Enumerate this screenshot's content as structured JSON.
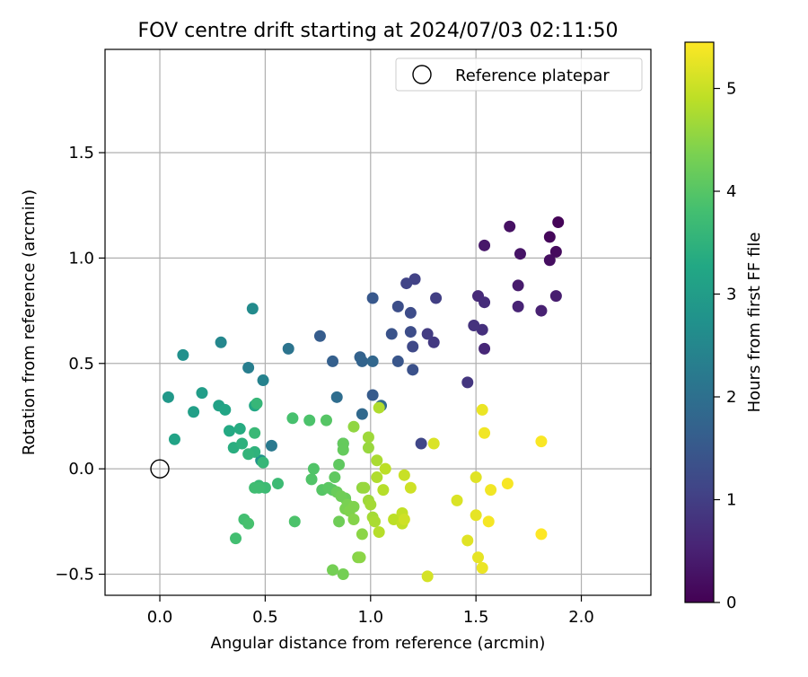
{
  "chart_data": {
    "type": "scatter",
    "title": "FOV centre drift starting at 2024/07/03 02:11:50",
    "xlabel": "Angular distance from reference (arcmin)",
    "ylabel": "Rotation from reference (arcmin)",
    "xlim": [
      -0.26,
      2.33
    ],
    "ylim": [
      -0.6,
      1.99
    ],
    "xticks": [
      0.0,
      0.5,
      1.0,
      1.5,
      2.0
    ],
    "xtick_labels": [
      "0.0",
      "0.5",
      "1.0",
      "1.5",
      "2.0"
    ],
    "yticks": [
      -0.5,
      0.0,
      0.5,
      1.0,
      1.5
    ],
    "ytick_labels": [
      "−0.5",
      "0.0",
      "0.5",
      "1.0",
      "1.5"
    ],
    "grid": true,
    "legend": {
      "placement": "upper right",
      "entries": [
        "Reference platepar"
      ]
    },
    "reference_point": {
      "x": 0.0,
      "y": 0.0,
      "label": "Reference platepar"
    },
    "colorbar": {
      "label": "Hours from first FF file",
      "range": [
        0,
        5.45
      ],
      "ticks": [
        0,
        1,
        2,
        3,
        4,
        5
      ],
      "tick_labels": [
        "0",
        "1",
        "2",
        "3",
        "4",
        "5"
      ],
      "colormap": "viridis"
    },
    "series": [
      {
        "columns": [
          "x",
          "y",
          "hours"
        ],
        "points": [
          [
            1.89,
            1.17,
            0.05
          ],
          [
            1.85,
            1.1,
            0.1
          ],
          [
            1.88,
            1.03,
            0.15
          ],
          [
            1.85,
            0.99,
            0.2
          ],
          [
            1.66,
            1.15,
            0.25
          ],
          [
            1.71,
            1.02,
            0.3
          ],
          [
            1.54,
            1.06,
            0.35
          ],
          [
            1.7,
            0.87,
            0.4
          ],
          [
            1.88,
            0.82,
            0.45
          ],
          [
            1.81,
            0.75,
            0.5
          ],
          [
            1.7,
            0.77,
            0.55
          ],
          [
            1.54,
            0.57,
            0.6
          ],
          [
            1.51,
            0.82,
            0.65
          ],
          [
            1.54,
            0.79,
            0.7
          ],
          [
            1.53,
            0.66,
            0.75
          ],
          [
            1.49,
            0.68,
            0.8
          ],
          [
            1.46,
            0.41,
            0.85
          ],
          [
            1.3,
            0.6,
            0.9
          ],
          [
            1.27,
            0.64,
            0.95
          ],
          [
            1.31,
            0.81,
            1.0
          ],
          [
            1.21,
            0.9,
            1.05
          ],
          [
            1.17,
            0.88,
            1.1
          ],
          [
            1.24,
            0.12,
            1.15
          ],
          [
            1.2,
            0.58,
            1.2
          ],
          [
            1.19,
            0.74,
            1.25
          ],
          [
            1.19,
            0.65,
            1.28
          ],
          [
            1.13,
            0.77,
            1.3
          ],
          [
            1.2,
            0.47,
            1.35
          ],
          [
            1.1,
            0.64,
            1.4
          ],
          [
            1.13,
            0.51,
            1.45
          ],
          [
            1.01,
            0.81,
            1.5
          ],
          [
            1.01,
            0.35,
            1.55
          ],
          [
            0.76,
            0.63,
            1.6
          ],
          [
            0.82,
            0.51,
            1.65
          ],
          [
            0.95,
            0.53,
            1.7
          ],
          [
            0.96,
            0.51,
            1.75
          ],
          [
            1.01,
            0.51,
            1.8
          ],
          [
            0.96,
            0.26,
            1.85
          ],
          [
            1.05,
            0.3,
            1.9
          ],
          [
            0.84,
            0.34,
            1.95
          ],
          [
            0.87,
            0.12,
            2.0
          ],
          [
            0.61,
            0.57,
            2.1
          ],
          [
            0.53,
            0.11,
            2.2
          ],
          [
            0.42,
            0.48,
            2.3
          ],
          [
            0.49,
            0.42,
            2.4
          ],
          [
            0.29,
            0.6,
            2.5
          ],
          [
            0.44,
            0.76,
            2.6
          ],
          [
            0.11,
            0.54,
            2.7
          ],
          [
            0.48,
            0.04,
            2.8
          ],
          [
            0.04,
            0.34,
            2.9
          ],
          [
            0.2,
            0.36,
            3.0
          ],
          [
            0.16,
            0.27,
            3.05
          ],
          [
            0.28,
            0.3,
            3.1
          ],
          [
            0.07,
            0.14,
            3.15
          ],
          [
            0.31,
            0.28,
            3.2
          ],
          [
            0.45,
            0.3,
            3.25
          ],
          [
            0.33,
            0.18,
            3.3
          ],
          [
            0.38,
            0.19,
            3.35
          ],
          [
            0.35,
            0.1,
            3.4
          ],
          [
            0.39,
            0.12,
            3.45
          ],
          [
            0.45,
            0.08,
            3.5
          ],
          [
            0.42,
            0.07,
            3.55
          ],
          [
            0.46,
            0.31,
            3.6
          ],
          [
            0.49,
            0.03,
            3.6
          ],
          [
            0.45,
            0.17,
            3.65
          ],
          [
            0.47,
            -0.08,
            3.65
          ],
          [
            0.5,
            -0.09,
            3.7
          ],
          [
            0.56,
            -0.07,
            3.7
          ],
          [
            0.45,
            -0.09,
            3.75
          ],
          [
            0.47,
            -0.09,
            3.75
          ],
          [
            0.4,
            -0.24,
            3.8
          ],
          [
            0.36,
            -0.33,
            3.8
          ],
          [
            0.42,
            -0.26,
            3.85
          ],
          [
            0.63,
            0.24,
            3.85
          ],
          [
            0.64,
            -0.25,
            3.9
          ],
          [
            0.71,
            0.23,
            3.9
          ],
          [
            0.73,
            0.0,
            3.95
          ],
          [
            0.72,
            -0.05,
            3.95
          ],
          [
            0.79,
            0.23,
            4.0
          ],
          [
            0.77,
            -0.1,
            4.0
          ],
          [
            0.8,
            -0.09,
            4.05
          ],
          [
            0.82,
            -0.1,
            4.05
          ],
          [
            0.83,
            -0.04,
            4.1
          ],
          [
            0.85,
            0.02,
            4.1
          ],
          [
            0.87,
            0.12,
            4.15
          ],
          [
            0.87,
            0.09,
            4.15
          ],
          [
            0.84,
            -0.11,
            4.2
          ],
          [
            0.88,
            -0.14,
            4.2
          ],
          [
            0.86,
            -0.13,
            4.25
          ],
          [
            0.85,
            -0.25,
            4.25
          ],
          [
            0.82,
            -0.48,
            4.3
          ],
          [
            0.87,
            -0.5,
            4.3
          ],
          [
            0.89,
            -0.17,
            4.35
          ],
          [
            0.88,
            -0.19,
            4.35
          ],
          [
            0.9,
            -0.2,
            4.4
          ],
          [
            0.92,
            -0.18,
            4.4
          ],
          [
            0.92,
            -0.24,
            4.45
          ],
          [
            0.94,
            -0.42,
            4.45
          ],
          [
            0.95,
            -0.42,
            4.5
          ],
          [
            0.96,
            -0.31,
            4.5
          ],
          [
            0.92,
            0.2,
            4.55
          ],
          [
            0.96,
            -0.09,
            4.55
          ],
          [
            0.97,
            -0.09,
            4.6
          ],
          [
            0.99,
            0.1,
            4.6
          ],
          [
            0.99,
            0.15,
            4.65
          ],
          [
            0.99,
            -0.15,
            4.65
          ],
          [
            1.0,
            -0.17,
            4.7
          ],
          [
            1.01,
            -0.23,
            4.7
          ],
          [
            1.02,
            -0.25,
            4.75
          ],
          [
            1.03,
            0.04,
            4.75
          ],
          [
            1.03,
            -0.04,
            4.8
          ],
          [
            1.04,
            0.29,
            4.8
          ],
          [
            1.04,
            -0.3,
            4.85
          ],
          [
            1.06,
            -0.1,
            4.85
          ],
          [
            1.07,
            0.0,
            4.9
          ],
          [
            1.11,
            -0.24,
            4.9
          ],
          [
            1.15,
            -0.21,
            4.95
          ],
          [
            1.15,
            -0.26,
            4.95
          ],
          [
            1.16,
            -0.03,
            5.0
          ],
          [
            1.19,
            -0.09,
            5.05
          ],
          [
            1.16,
            -0.24,
            5.05
          ],
          [
            1.27,
            -0.51,
            5.1
          ],
          [
            1.3,
            0.12,
            5.15
          ],
          [
            1.41,
            -0.15,
            5.15
          ],
          [
            1.46,
            -0.34,
            5.2
          ],
          [
            1.5,
            -0.04,
            5.2
          ],
          [
            1.5,
            -0.22,
            5.25
          ],
          [
            1.51,
            -0.42,
            5.25
          ],
          [
            1.53,
            0.28,
            5.3
          ],
          [
            1.53,
            -0.47,
            5.3
          ],
          [
            1.54,
            0.17,
            5.35
          ],
          [
            1.57,
            -0.1,
            5.35
          ],
          [
            1.56,
            -0.25,
            5.38
          ],
          [
            1.65,
            -0.07,
            5.4
          ],
          [
            1.81,
            0.13,
            5.42
          ],
          [
            1.81,
            -0.31,
            5.45
          ]
        ]
      }
    ]
  }
}
